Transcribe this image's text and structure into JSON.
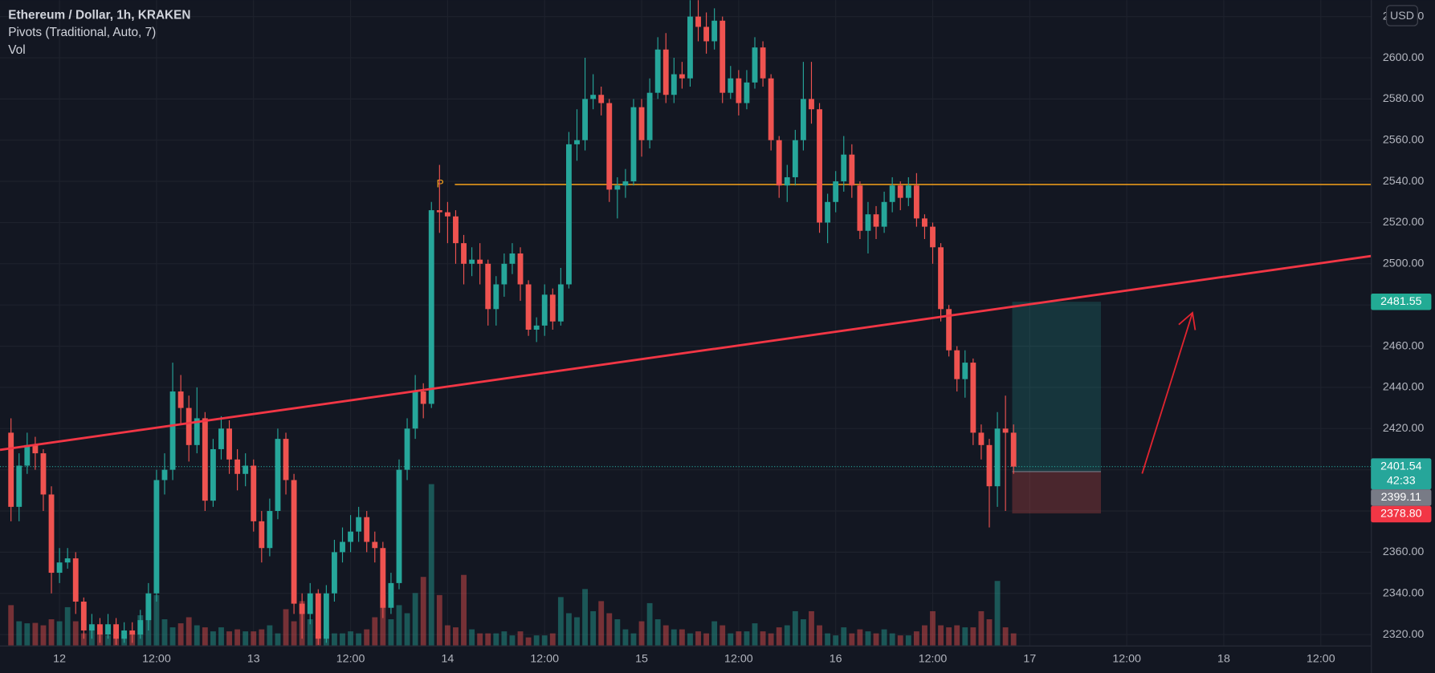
{
  "legend": {
    "title": "Ethereum / Dollar, 1h, KRAKEN",
    "indicator": "Pivots (Traditional, Auto, 7)",
    "volume": "Vol"
  },
  "chart_data": {
    "type": "candlestick",
    "currency": "USD",
    "up_color": "#26a69a",
    "down_color": "#ef5350",
    "grid": true,
    "xlim": [
      -7.36,
      162.2
    ],
    "ylim": [
      2314.7,
      2628
    ],
    "volume_lim": [
      0,
      16000
    ],
    "xticks": [
      {
        "value": 0,
        "label": "12"
      },
      {
        "value": 12,
        "label": "12:00"
      },
      {
        "value": 24,
        "label": "13"
      },
      {
        "value": 36,
        "label": "12:00"
      },
      {
        "value": 48,
        "label": "14"
      },
      {
        "value": 60,
        "label": "12:00"
      },
      {
        "value": 72,
        "label": "15"
      },
      {
        "value": 84,
        "label": "12:00"
      },
      {
        "value": 96,
        "label": "16"
      },
      {
        "value": 108,
        "label": "12:00"
      },
      {
        "value": 120,
        "label": "17"
      },
      {
        "value": 132,
        "label": "12:00"
      },
      {
        "value": 144,
        "label": "18"
      },
      {
        "value": 156,
        "label": "12:00"
      }
    ],
    "yticks": [
      {
        "value": 2320,
        "label": "2320.00"
      },
      {
        "value": 2340,
        "label": "2340.00"
      },
      {
        "value": 2360,
        "label": "2360.00"
      },
      {
        "value": 2380,
        "label": "2380.00"
      },
      {
        "value": 2400,
        "label": "2400.00"
      },
      {
        "value": 2420,
        "label": "2420.00"
      },
      {
        "value": 2440,
        "label": "2440.00"
      },
      {
        "value": 2460,
        "label": "2460.00"
      },
      {
        "value": 2480,
        "label": "2480.00"
      },
      {
        "value": 2500,
        "label": "2500.00"
      },
      {
        "value": 2520,
        "label": "2520.00"
      },
      {
        "value": 2540,
        "label": "2540.00"
      },
      {
        "value": 2560,
        "label": "2560.00"
      },
      {
        "value": 2580,
        "label": "2580.00"
      },
      {
        "value": 2600,
        "label": "2600.00"
      },
      {
        "value": 2620,
        "label": "2620.00"
      }
    ],
    "x": [
      -6,
      -5,
      -4,
      -3,
      -2,
      -1,
      0,
      1,
      2,
      3,
      4,
      5,
      6,
      7,
      8,
      9,
      10,
      11,
      12,
      13,
      14,
      15,
      16,
      17,
      18,
      19,
      20,
      21,
      22,
      23,
      24,
      25,
      26,
      27,
      28,
      29,
      30,
      31,
      32,
      33,
      34,
      35,
      36,
      37,
      38,
      39,
      40,
      41,
      42,
      43,
      44,
      45,
      46,
      47,
      48,
      49,
      50,
      51,
      52,
      53,
      54,
      55,
      56,
      57,
      58,
      59,
      60,
      61,
      62,
      63,
      64,
      65,
      66,
      67,
      68,
      69,
      70,
      71,
      72,
      73,
      74,
      75,
      76,
      77,
      78,
      79,
      80,
      81,
      82,
      83,
      84,
      85,
      86,
      87,
      88,
      89,
      90,
      91,
      92,
      93,
      94,
      95,
      96,
      97,
      98,
      99,
      100,
      101,
      102,
      103,
      104,
      105,
      106,
      107,
      108,
      109,
      110,
      111,
      112,
      113,
      114,
      115,
      116,
      117,
      118
    ],
    "open": [
      2418,
      2382,
      2402,
      2412,
      2408,
      2388,
      2350,
      2355,
      2357,
      2336,
      2322,
      2325,
      2320,
      2325,
      2318,
      2322,
      2320,
      2327,
      2340,
      2395,
      2400,
      2438,
      2430,
      2412,
      2425,
      2385,
      2410,
      2420,
      2405,
      2398,
      2402,
      2375,
      2362,
      2380,
      2415,
      2395,
      2335,
      2330,
      2340,
      2318,
      2340,
      2360,
      2365,
      2370,
      2377,
      2365,
      2362,
      2333,
      2345,
      2400,
      2420,
      2438,
      2432,
      2526,
      2525,
      2523,
      2510,
      2500,
      2502,
      2500,
      2478,
      2490,
      2500,
      2505,
      2490,
      2468,
      2470,
      2485,
      2472,
      2490,
      2558,
      2560,
      2580,
      2582,
      2578,
      2536,
      2538,
      2540,
      2576,
      2560,
      2583,
      2604,
      2582,
      2592,
      2590,
      2620,
      2615,
      2608,
      2618,
      2583,
      2590,
      2578,
      2588,
      2605,
      2590,
      2560,
      2538,
      2542,
      2560,
      2580,
      2575,
      2520,
      2530,
      2540,
      2553,
      2538,
      2516,
      2524,
      2518,
      2530,
      2538,
      2532,
      2538,
      2522,
      2518,
      2508,
      2478,
      2458,
      2444,
      2452,
      2418,
      2412,
      2392,
      2420,
      2418
    ],
    "high": [
      2425,
      2408,
      2418,
      2416,
      2410,
      2392,
      2362,
      2362,
      2360,
      2338,
      2330,
      2328,
      2330,
      2328,
      2326,
      2326,
      2332,
      2345,
      2400,
      2408,
      2452,
      2446,
      2436,
      2440,
      2428,
      2415,
      2426,
      2424,
      2410,
      2408,
      2405,
      2380,
      2386,
      2420,
      2418,
      2398,
      2340,
      2345,
      2342,
      2344,
      2366,
      2372,
      2378,
      2382,
      2380,
      2370,
      2365,
      2350,
      2405,
      2425,
      2446,
      2442,
      2530,
      2548,
      2530,
      2526,
      2514,
      2508,
      2510,
      2502,
      2494,
      2505,
      2510,
      2508,
      2492,
      2474,
      2490,
      2488,
      2498,
      2564,
      2575,
      2600,
      2592,
      2586,
      2580,
      2542,
      2546,
      2580,
      2580,
      2590,
      2610,
      2612,
      2600,
      2598,
      2628,
      2628,
      2622,
      2624,
      2620,
      2596,
      2594,
      2594,
      2610,
      2608,
      2592,
      2562,
      2548,
      2565,
      2598,
      2598,
      2578,
      2534,
      2545,
      2562,
      2558,
      2540,
      2530,
      2528,
      2535,
      2542,
      2540,
      2542,
      2544,
      2524,
      2520,
      2510,
      2480,
      2460,
      2458,
      2454,
      2422,
      2415,
      2428,
      2436,
      2422
    ],
    "low": [
      2375,
      2375,
      2398,
      2400,
      2380,
      2340,
      2345,
      2352,
      2330,
      2318,
      2318,
      2316,
      2318,
      2315,
      2316,
      2316,
      2318,
      2322,
      2336,
      2388,
      2395,
      2422,
      2404,
      2408,
      2380,
      2382,
      2405,
      2398,
      2390,
      2392,
      2370,
      2355,
      2358,
      2376,
      2388,
      2330,
      2318,
      2325,
      2315,
      2316,
      2336,
      2355,
      2360,
      2365,
      2360,
      2355,
      2328,
      2330,
      2342,
      2395,
      2415,
      2425,
      2430,
      2515,
      2510,
      2500,
      2490,
      2494,
      2490,
      2470,
      2470,
      2484,
      2495,
      2482,
      2465,
      2462,
      2465,
      2468,
      2470,
      2488,
      2550,
      2555,
      2575,
      2572,
      2530,
      2522,
      2532,
      2538,
      2552,
      2556,
      2580,
      2578,
      2578,
      2585,
      2586,
      2608,
      2602,
      2604,
      2578,
      2580,
      2572,
      2575,
      2585,
      2586,
      2555,
      2532,
      2530,
      2538,
      2555,
      2568,
      2515,
      2510,
      2525,
      2535,
      2532,
      2512,
      2505,
      2512,
      2515,
      2525,
      2526,
      2528,
      2518,
      2512,
      2500,
      2472,
      2455,
      2438,
      2435,
      2412,
      2405,
      2372,
      2382,
      2380,
      2398
    ],
    "close": [
      2382,
      2402,
      2412,
      2408,
      2388,
      2350,
      2355,
      2357,
      2336,
      2322,
      2325,
      2320,
      2325,
      2318,
      2322,
      2320,
      2327,
      2340,
      2395,
      2400,
      2438,
      2430,
      2412,
      2425,
      2385,
      2410,
      2420,
      2405,
      2398,
      2402,
      2375,
      2362,
      2380,
      2415,
      2395,
      2335,
      2330,
      2340,
      2318,
      2340,
      2360,
      2365,
      2370,
      2377,
      2365,
      2362,
      2333,
      2345,
      2400,
      2420,
      2438,
      2432,
      2526,
      2525,
      2523,
      2510,
      2500,
      2502,
      2500,
      2478,
      2490,
      2500,
      2505,
      2490,
      2468,
      2470,
      2485,
      2472,
      2490,
      2558,
      2560,
      2580,
      2582,
      2578,
      2536,
      2538,
      2540,
      2576,
      2560,
      2583,
      2604,
      2582,
      2592,
      2590,
      2620,
      2615,
      2608,
      2618,
      2583,
      2590,
      2578,
      2588,
      2605,
      2590,
      2560,
      2538,
      2542,
      2560,
      2580,
      2575,
      2520,
      2530,
      2540,
      2553,
      2538,
      2516,
      2524,
      2518,
      2530,
      2538,
      2532,
      2538,
      2522,
      2518,
      2508,
      2478,
      2458,
      2444,
      2452,
      2418,
      2412,
      2392,
      2420,
      2418,
      2401.54
    ],
    "volume": [
      1000,
      600,
      550,
      560,
      500,
      650,
      600,
      950,
      600,
      300,
      400,
      350,
      250,
      300,
      350,
      300,
      750,
      900,
      1250,
      650,
      450,
      550,
      700,
      500,
      450,
      350,
      450,
      350,
      400,
      350,
      350,
      400,
      500,
      300,
      900,
      600,
      1100,
      650,
      300,
      400,
      300,
      300,
      350,
      300,
      400,
      700,
      1250,
      650,
      1000,
      800,
      1300,
      1700,
      4000,
      1250,
      500,
      450,
      1750,
      400,
      300,
      300,
      300,
      350,
      250,
      350,
      200,
      250,
      250,
      300,
      1200,
      800,
      700,
      1400,
      850,
      1100,
      800,
      650,
      400,
      300,
      600,
      1050,
      650,
      500,
      400,
      400,
      300,
      350,
      300,
      600,
      500,
      300,
      350,
      350,
      550,
      350,
      300,
      450,
      500,
      850,
      650,
      850,
      500,
      300,
      250,
      450,
      300,
      400,
      350,
      300,
      400,
      300,
      250,
      250,
      350,
      500,
      850,
      500,
      450,
      500,
      450,
      450,
      850,
      650,
      1600,
      450,
      300
    ],
    "pivot": {
      "label": "P",
      "value": 2538.5,
      "color": "#f7a21b"
    },
    "last_price": 2401.54,
    "countdown": "42:33",
    "position": {
      "target": 2481.55,
      "entry": 2399.11,
      "stop": {
        "value": 2378.8,
        "label": "2378.80"
      }
    }
  }
}
